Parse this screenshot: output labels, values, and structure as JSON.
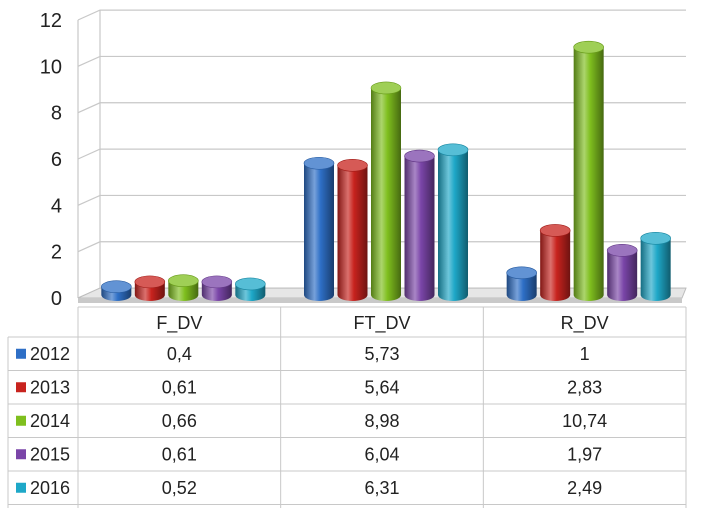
{
  "chart_data": {
    "type": "bar",
    "title": "",
    "xlabel": "",
    "ylabel": "",
    "ylim": [
      0,
      12
    ],
    "yticks": [
      0,
      2,
      4,
      6,
      8,
      10,
      12
    ],
    "grid": true,
    "categories": [
      "F_DV",
      "FT_DV",
      "R_DV"
    ],
    "value_labels": [
      [
        "0,4",
        "5,73",
        "1"
      ],
      [
        "0,61",
        "5,64",
        "2,83"
      ],
      [
        "0,66",
        "8,98",
        "10,74"
      ],
      [
        "0,61",
        "6,04",
        "1,97"
      ],
      [
        "0,52",
        "6,31",
        "2,49"
      ]
    ],
    "series": [
      {
        "name": "2012",
        "color": "#2e6fc6",
        "values": [
          0.4,
          5.73,
          1
        ]
      },
      {
        "name": "2013",
        "color": "#c8231e",
        "values": [
          0.61,
          5.64,
          2.83
        ]
      },
      {
        "name": "2014",
        "color": "#7fbf1e",
        "values": [
          0.66,
          8.98,
          10.74
        ]
      },
      {
        "name": "2015",
        "color": "#7a45a8",
        "values": [
          0.61,
          6.04,
          1.97
        ]
      },
      {
        "name": "2016",
        "color": "#1ea8c8",
        "values": [
          0.52,
          6.31,
          2.49
        ]
      }
    ]
  }
}
